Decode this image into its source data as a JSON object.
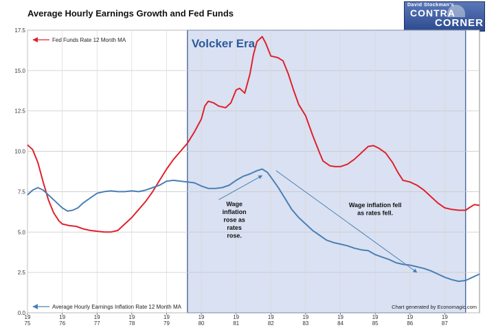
{
  "chart_data": {
    "type": "line",
    "title": "Average Hourly Earnings Growth and Fed Funds",
    "ylim": [
      0,
      17.5
    ],
    "y_ticks": [
      "0.0",
      "2.5",
      "5.0",
      "7.5",
      "10.0",
      "12.5",
      "15.0",
      "17.5"
    ],
    "x_range": [
      1975.0,
      1988.0
    ],
    "x_ticks": [
      {
        "top": "19",
        "bottom": "75",
        "year": 1975
      },
      {
        "top": "19",
        "bottom": "76",
        "year": 1976
      },
      {
        "top": "19",
        "bottom": "77",
        "year": 1977
      },
      {
        "top": "19",
        "bottom": "78",
        "year": 1978
      },
      {
        "top": "19",
        "bottom": "79",
        "year": 1979
      },
      {
        "top": "19",
        "bottom": "80",
        "year": 1980
      },
      {
        "top": "19",
        "bottom": "81",
        "year": 1981
      },
      {
        "top": "19",
        "bottom": "82",
        "year": 1982
      },
      {
        "top": "19",
        "bottom": "83",
        "year": 1983
      },
      {
        "top": "19",
        "bottom": "84",
        "year": 1984
      },
      {
        "top": "19",
        "bottom": "85",
        "year": 1985
      },
      {
        "top": "19",
        "bottom": "86",
        "year": 1986
      },
      {
        "top": "19",
        "bottom": "87",
        "year": 1987
      }
    ],
    "grid": true,
    "legend_placement": "top-left and bottom-left",
    "shaded_region": {
      "label": "Volcker Era",
      "x_start": 1979.6,
      "x_end": 1987.6,
      "color": "#d9e1f2",
      "border": "#2e4f8a"
    },
    "annotations": [
      {
        "text_lines": [
          "Wage",
          "inflation",
          "rose as",
          "rates",
          "rose."
        ]
      },
      {
        "text_lines": [
          "Wage inflation fell",
          "as rates fell."
        ]
      }
    ],
    "arrows": [
      {
        "from": [
          1980.5,
          7.0
        ],
        "to": [
          1981.75,
          8.5
        ]
      },
      {
        "from": [
          1982.15,
          8.8
        ],
        "to": [
          1986.2,
          2.5
        ]
      }
    ],
    "source_note": "Chart generated by Economagic.com",
    "series": [
      {
        "name": "Fed Funds Rate 12 Month MA",
        "color": "#e0202a",
        "points": [
          [
            1975.0,
            10.4
          ],
          [
            1975.15,
            10.1
          ],
          [
            1975.3,
            9.3
          ],
          [
            1975.45,
            8.1
          ],
          [
            1975.6,
            7.0
          ],
          [
            1975.75,
            6.2
          ],
          [
            1975.9,
            5.7
          ],
          [
            1976.0,
            5.5
          ],
          [
            1976.2,
            5.4
          ],
          [
            1976.4,
            5.35
          ],
          [
            1976.6,
            5.2
          ],
          [
            1976.8,
            5.1
          ],
          [
            1977.0,
            5.05
          ],
          [
            1977.2,
            5.0
          ],
          [
            1977.4,
            5.0
          ],
          [
            1977.6,
            5.1
          ],
          [
            1977.8,
            5.5
          ],
          [
            1978.0,
            5.9
          ],
          [
            1978.2,
            6.4
          ],
          [
            1978.4,
            6.9
          ],
          [
            1978.6,
            7.5
          ],
          [
            1978.8,
            8.2
          ],
          [
            1979.0,
            8.9
          ],
          [
            1979.2,
            9.5
          ],
          [
            1979.4,
            10.0
          ],
          [
            1979.6,
            10.5
          ],
          [
            1979.8,
            11.2
          ],
          [
            1980.0,
            12.0
          ],
          [
            1980.1,
            12.8
          ],
          [
            1980.2,
            13.1
          ],
          [
            1980.35,
            13.0
          ],
          [
            1980.5,
            12.8
          ],
          [
            1980.7,
            12.7
          ],
          [
            1980.85,
            13.0
          ],
          [
            1981.0,
            13.8
          ],
          [
            1981.1,
            13.9
          ],
          [
            1981.25,
            13.6
          ],
          [
            1981.4,
            14.8
          ],
          [
            1981.5,
            16.0
          ],
          [
            1981.6,
            16.8
          ],
          [
            1981.75,
            17.1
          ],
          [
            1981.85,
            16.7
          ],
          [
            1982.0,
            15.9
          ],
          [
            1982.2,
            15.8
          ],
          [
            1982.35,
            15.6
          ],
          [
            1982.5,
            14.8
          ],
          [
            1982.65,
            13.8
          ],
          [
            1982.8,
            12.9
          ],
          [
            1983.0,
            12.2
          ],
          [
            1983.2,
            11.0
          ],
          [
            1983.4,
            9.9
          ],
          [
            1983.5,
            9.4
          ],
          [
            1983.7,
            9.1
          ],
          [
            1983.85,
            9.05
          ],
          [
            1984.0,
            9.05
          ],
          [
            1984.2,
            9.2
          ],
          [
            1984.4,
            9.5
          ],
          [
            1984.6,
            9.9
          ],
          [
            1984.8,
            10.3
          ],
          [
            1984.95,
            10.35
          ],
          [
            1985.1,
            10.2
          ],
          [
            1985.3,
            9.9
          ],
          [
            1985.5,
            9.3
          ],
          [
            1985.65,
            8.7
          ],
          [
            1985.8,
            8.2
          ],
          [
            1986.0,
            8.1
          ],
          [
            1986.2,
            7.9
          ],
          [
            1986.4,
            7.6
          ],
          [
            1986.6,
            7.2
          ],
          [
            1986.8,
            6.8
          ],
          [
            1987.0,
            6.5
          ],
          [
            1987.2,
            6.4
          ],
          [
            1987.4,
            6.35
          ],
          [
            1987.6,
            6.35
          ],
          [
            1987.7,
            6.5
          ],
          [
            1987.85,
            6.7
          ],
          [
            1988.0,
            6.65
          ]
        ]
      },
      {
        "name": "Average Hourly Earnings Inflation Rate 12 Month MA",
        "color": "#4a7fb5",
        "points": [
          [
            1975.0,
            7.3
          ],
          [
            1975.15,
            7.6
          ],
          [
            1975.3,
            7.75
          ],
          [
            1975.45,
            7.6
          ],
          [
            1975.6,
            7.3
          ],
          [
            1975.75,
            7.0
          ],
          [
            1975.9,
            6.7
          ],
          [
            1976.0,
            6.5
          ],
          [
            1976.15,
            6.3
          ],
          [
            1976.3,
            6.35
          ],
          [
            1976.45,
            6.5
          ],
          [
            1976.6,
            6.8
          ],
          [
            1976.8,
            7.1
          ],
          [
            1977.0,
            7.4
          ],
          [
            1977.2,
            7.5
          ],
          [
            1977.4,
            7.55
          ],
          [
            1977.6,
            7.5
          ],
          [
            1977.8,
            7.5
          ],
          [
            1978.0,
            7.55
          ],
          [
            1978.2,
            7.5
          ],
          [
            1978.4,
            7.6
          ],
          [
            1978.6,
            7.75
          ],
          [
            1978.8,
            7.9
          ],
          [
            1979.0,
            8.15
          ],
          [
            1979.2,
            8.2
          ],
          [
            1979.4,
            8.15
          ],
          [
            1979.6,
            8.1
          ],
          [
            1979.8,
            8.05
          ],
          [
            1980.0,
            7.85
          ],
          [
            1980.2,
            7.7
          ],
          [
            1980.4,
            7.7
          ],
          [
            1980.6,
            7.75
          ],
          [
            1980.8,
            7.9
          ],
          [
            1981.0,
            8.2
          ],
          [
            1981.2,
            8.45
          ],
          [
            1981.4,
            8.6
          ],
          [
            1981.6,
            8.8
          ],
          [
            1981.75,
            8.9
          ],
          [
            1981.9,
            8.7
          ],
          [
            1982.0,
            8.4
          ],
          [
            1982.2,
            7.8
          ],
          [
            1982.4,
            7.1
          ],
          [
            1982.6,
            6.4
          ],
          [
            1982.8,
            5.9
          ],
          [
            1983.0,
            5.5
          ],
          [
            1983.2,
            5.1
          ],
          [
            1983.4,
            4.8
          ],
          [
            1983.6,
            4.5
          ],
          [
            1983.8,
            4.35
          ],
          [
            1984.0,
            4.25
          ],
          [
            1984.2,
            4.15
          ],
          [
            1984.4,
            4.0
          ],
          [
            1984.6,
            3.9
          ],
          [
            1984.8,
            3.85
          ],
          [
            1985.0,
            3.6
          ],
          [
            1985.2,
            3.45
          ],
          [
            1985.4,
            3.3
          ],
          [
            1985.6,
            3.1
          ],
          [
            1985.8,
            3.0
          ],
          [
            1986.0,
            2.95
          ],
          [
            1986.2,
            2.85
          ],
          [
            1986.4,
            2.75
          ],
          [
            1986.6,
            2.6
          ],
          [
            1986.8,
            2.4
          ],
          [
            1987.0,
            2.2
          ],
          [
            1987.2,
            2.05
          ],
          [
            1987.4,
            1.95
          ],
          [
            1987.6,
            2.0
          ],
          [
            1987.8,
            2.2
          ],
          [
            1988.0,
            2.4
          ]
        ]
      }
    ]
  },
  "logo": {
    "line1": "David Stockman's",
    "line2": "CONTRA",
    "line3": "CORNER"
  }
}
